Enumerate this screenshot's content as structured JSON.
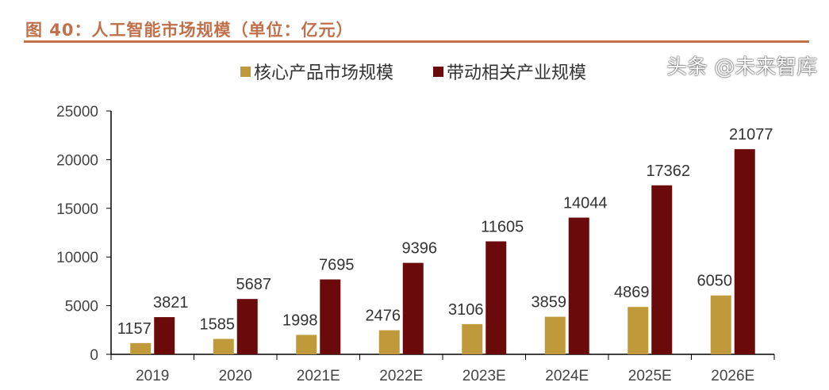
{
  "title": "图 40：人工智能市场规模（单位：亿元）",
  "watermark": "头条 @未来智库",
  "chart_data": {
    "type": "bar",
    "title": "",
    "categories": [
      "2019",
      "2020",
      "2021E",
      "2022E",
      "2023E",
      "2024E",
      "2025E",
      "2026E"
    ],
    "series": [
      {
        "name": "核心产品市场规模",
        "color": "#c09a3a",
        "values": [
          1157,
          1585,
          1998,
          2476,
          3106,
          3859,
          4869,
          6050
        ]
      },
      {
        "name": "带动相关产业规模",
        "color": "#6b0a0a",
        "values": [
          3821,
          5687,
          7695,
          9396,
          11605,
          14044,
          17362,
          21077
        ]
      }
    ],
    "yticks": [
      "0",
      "5000",
      "10000",
      "15000",
      "20000",
      "25000"
    ],
    "ylim": [
      0,
      25000
    ],
    "grid": false,
    "legend": "top",
    "data_labels": true
  }
}
